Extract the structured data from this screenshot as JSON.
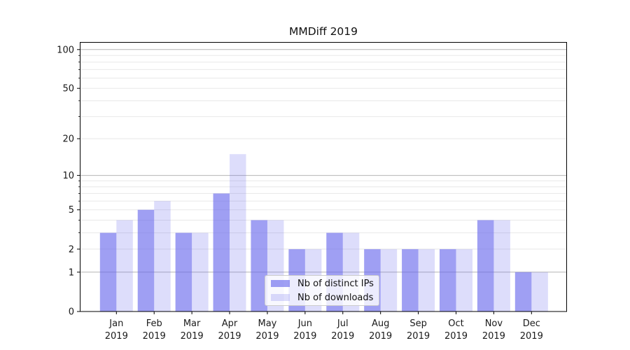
{
  "title": "MMDiff 2019",
  "legend": {
    "items": [
      {
        "label": "Nb of distinct IPs",
        "color": "rgba(100,100,235,0.62)"
      },
      {
        "label": "Nb of downloads",
        "color": "rgba(100,100,235,0.22)"
      }
    ]
  },
  "chart_data": {
    "type": "bar",
    "title": "MMDiff 2019",
    "categories": [
      "Jan",
      "Feb",
      "Mar",
      "Apr",
      "May",
      "Jun",
      "Jul",
      "Aug",
      "Sep",
      "Oct",
      "Nov",
      "Dec"
    ],
    "category_sublabel": "2019",
    "series": [
      {
        "name": "Nb of distinct IPs",
        "color": "rgba(100,100,235,0.62)",
        "values": [
          3,
          5,
          3,
          7,
          4,
          2,
          3,
          2,
          2,
          2,
          4,
          1
        ]
      },
      {
        "name": "Nb of downloads",
        "color": "rgba(100,100,235,0.22)",
        "values": [
          4,
          6,
          3,
          15,
          4,
          2,
          3,
          2,
          2,
          2,
          4,
          1
        ]
      }
    ],
    "yscale": "symlog-log1p",
    "y_major_ticks": [
      0,
      1,
      2,
      5,
      10,
      20,
      50,
      100
    ],
    "y_minor_ticks": [
      3,
      4,
      6,
      7,
      8,
      9,
      30,
      40,
      60,
      70,
      80,
      90
    ],
    "y_decade_ticks": [
      1,
      10,
      100
    ],
    "ylim": [
      0,
      113
    ],
    "xlabel": "",
    "ylabel": "",
    "grid": true,
    "legend_position": "lower center"
  },
  "colors": {
    "background": "#ffffff",
    "spine": "#000000",
    "grid_decade": "#b5b5b5",
    "grid_light": "#e8e8e8",
    "tick": "#000000",
    "text": "#1a1a1a"
  }
}
